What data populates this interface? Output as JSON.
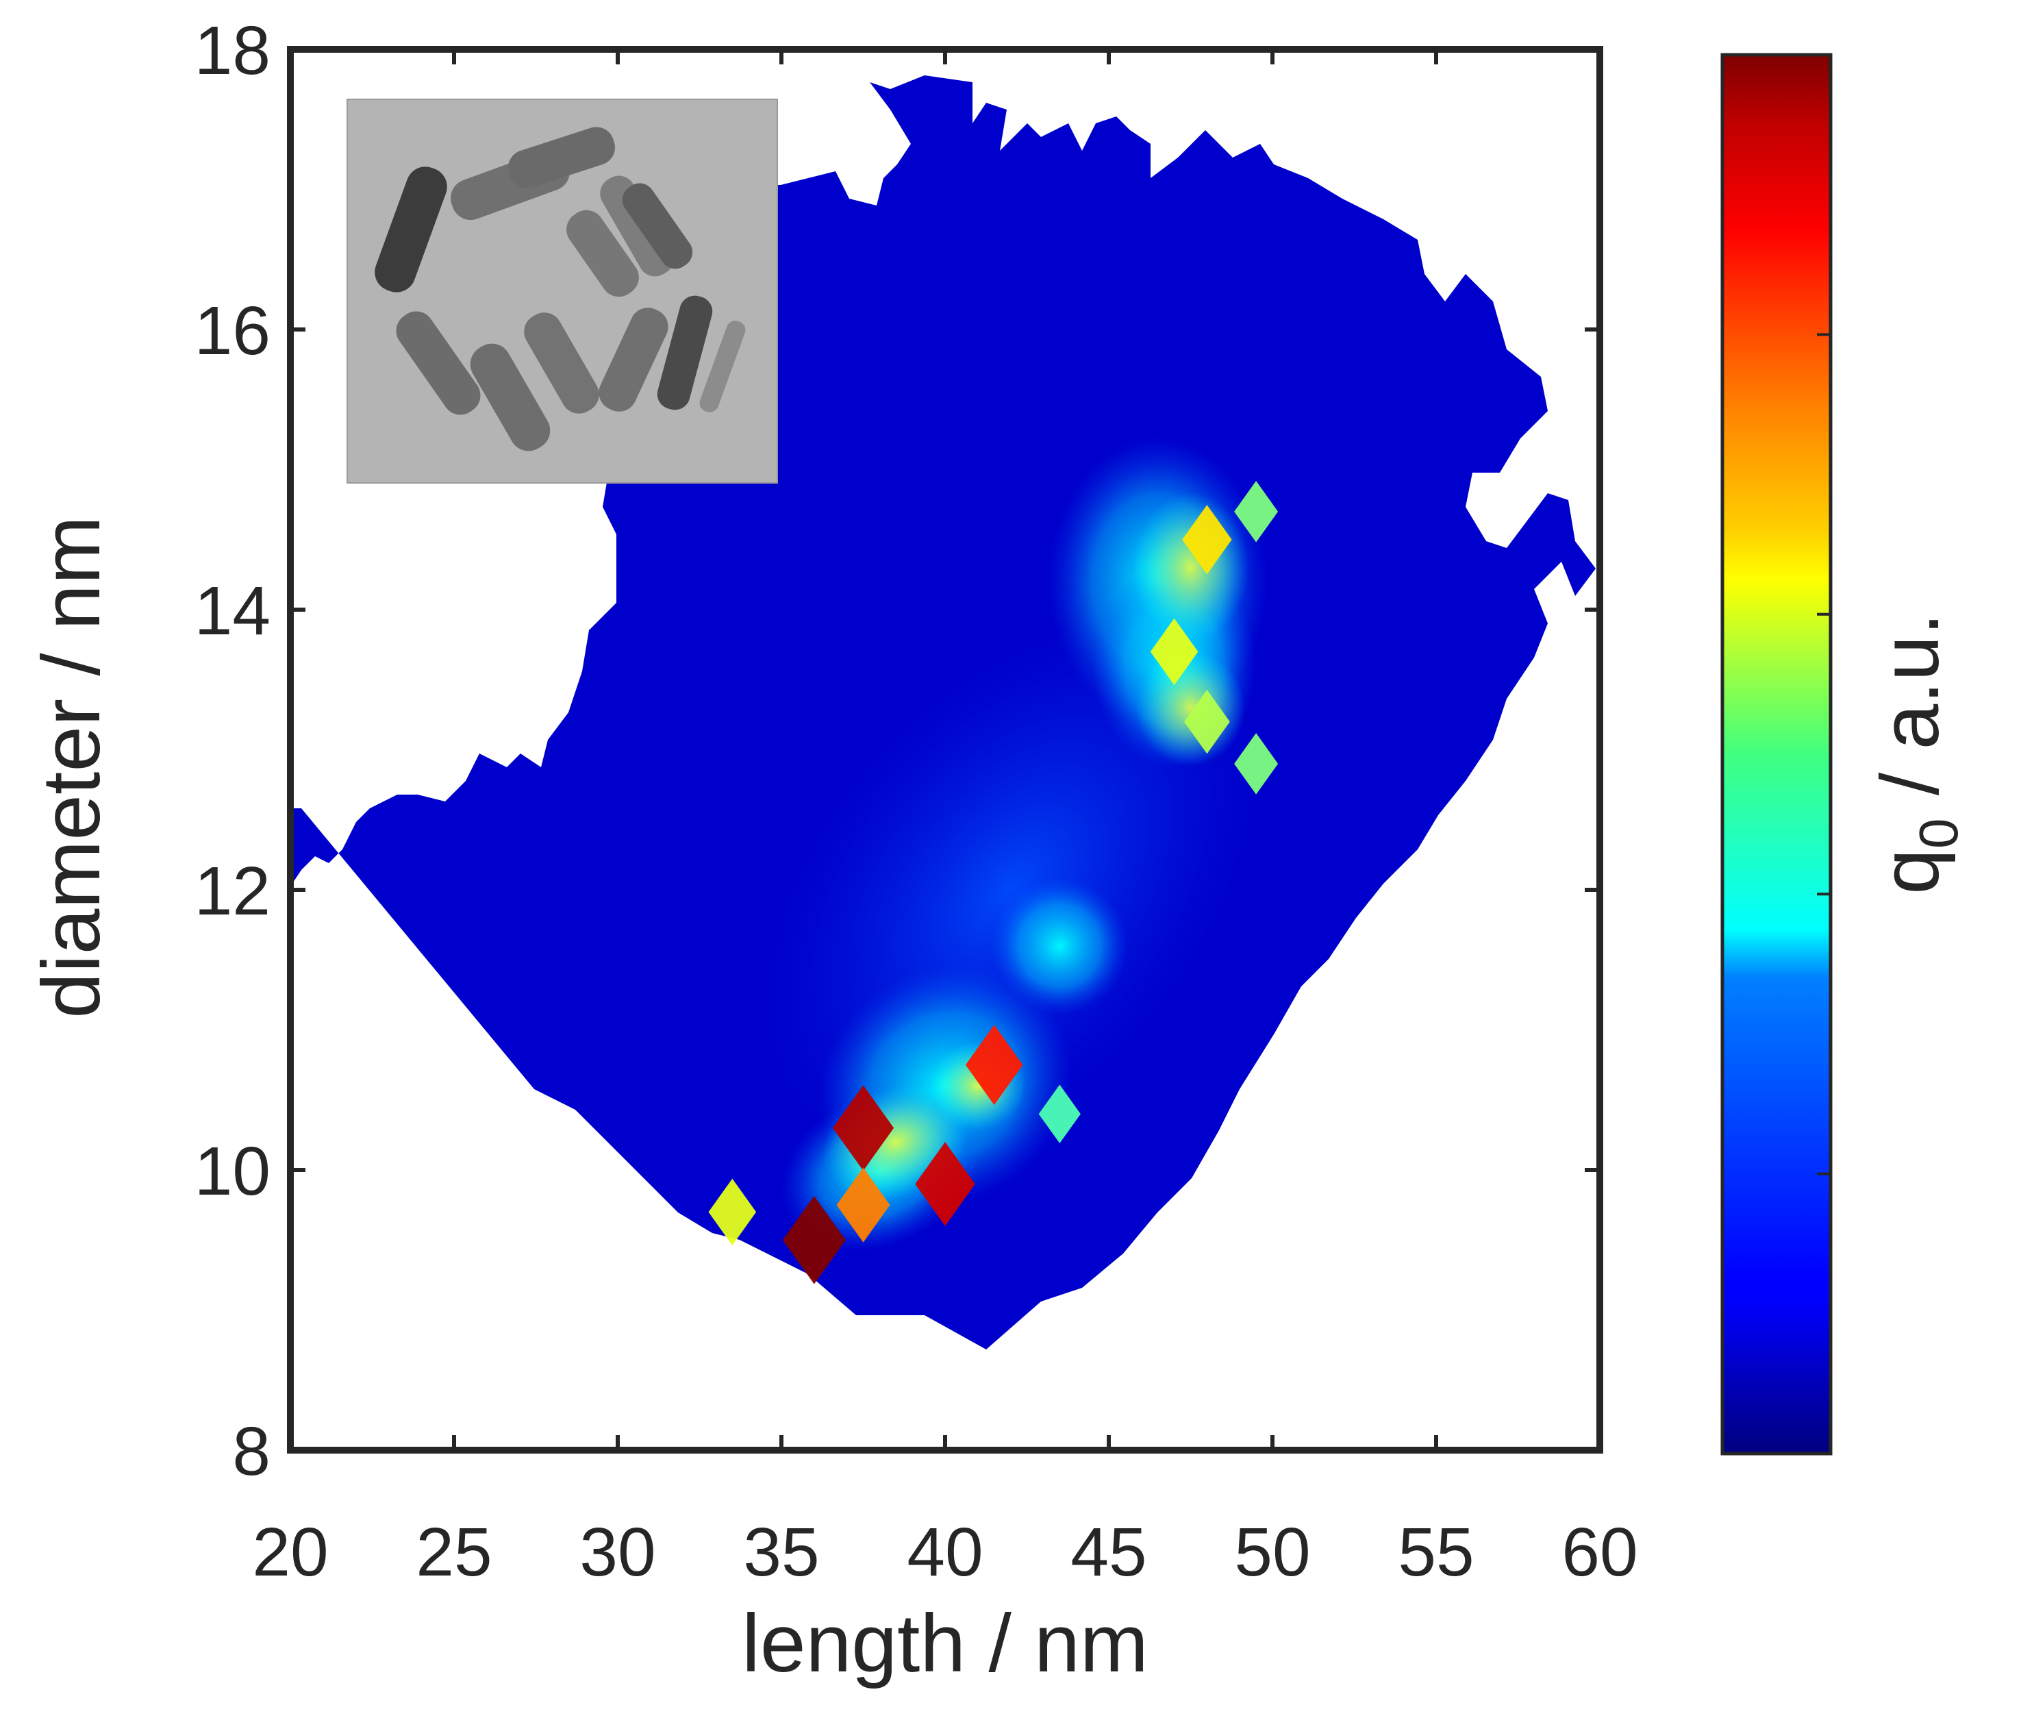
{
  "chart_data": {
    "type": "heatmap",
    "title": "",
    "xlabel": "length / nm",
    "ylabel": "diameter / nm",
    "colorbar_label_base": "q",
    "colorbar_label_sub": "0",
    "colorbar_label_suffix": " / a.u.",
    "xlim": [
      20,
      60
    ],
    "ylim": [
      8,
      18
    ],
    "xticks": [
      20,
      25,
      30,
      35,
      40,
      45,
      50,
      55,
      60
    ],
    "yticks": [
      8,
      10,
      12,
      14,
      16,
      18
    ],
    "colormap": "jet",
    "colorbar_range": [
      0,
      1
    ],
    "colorbar_ticks": [
      0.2,
      0.4,
      0.6,
      0.8,
      1.0
    ],
    "colorbar_tick_labels_shown": false,
    "grid": false,
    "inset": "grayscale TEM micrograph of rod-shaped nanoparticles, top-left",
    "peaks": [
      {
        "x": 36.0,
        "y": 9.5,
        "value": 1.0
      },
      {
        "x": 37.5,
        "y": 10.3,
        "value": 0.95
      },
      {
        "x": 40.0,
        "y": 9.9,
        "value": 0.92
      },
      {
        "x": 37.5,
        "y": 9.75,
        "value": 0.75
      },
      {
        "x": 41.5,
        "y": 10.75,
        "value": 0.85
      },
      {
        "x": 33.5,
        "y": 9.7,
        "value": 0.6
      },
      {
        "x": 47.0,
        "y": 13.7,
        "value": 0.6
      },
      {
        "x": 48.0,
        "y": 14.5,
        "value": 0.65
      },
      {
        "x": 48.0,
        "y": 13.2,
        "value": 0.55
      },
      {
        "x": 49.5,
        "y": 14.7,
        "value": 0.5
      },
      {
        "x": 49.5,
        "y": 12.9,
        "value": 0.5
      },
      {
        "x": 43.5,
        "y": 10.4,
        "value": 0.45
      }
    ]
  }
}
